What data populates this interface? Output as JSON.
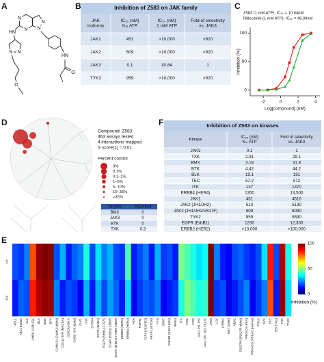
{
  "panel_labels": [
    "A",
    "B",
    "C",
    "D",
    "E",
    "F"
  ],
  "structure": {
    "atoms": [
      "N",
      "N",
      "N",
      "N",
      "HN",
      "N",
      "N",
      "HN",
      "O",
      "O"
    ]
  },
  "table_b": {
    "title": "Inhibition of Z583  on JAK family",
    "columns": [
      [
        "JAK",
        "isoforms"
      ],
      [
        "IC₅₀ (nM)",
        "Kₘ ATP"
      ],
      [
        "IC₅₀ (nM)",
        "1 mM ATP"
      ],
      [
        "Fold of selectivity",
        "vs. JAK3"
      ]
    ],
    "rows": [
      [
        "JAK1",
        451,
        ">10,000",
        ">920"
      ],
      [
        "JAK2",
        609,
        ">10,000",
        ">920"
      ],
      [
        "JAK3",
        0.1,
        10.84,
        1
      ],
      [
        "TYK2",
        959,
        ">10,000",
        ">920"
      ]
    ],
    "highlight_row": 2,
    "highlight_color": "#e8170f"
  },
  "chart_data": {
    "type": "line",
    "x_label": "Log[compound] (nM)",
    "y_label": "Inhibition (%)",
    "x": [
      -2.5,
      -1.5,
      -0.5,
      0.5,
      1,
      1.5,
      2.5,
      3.5
    ],
    "series": [
      {
        "name": "Z583 (1 mM ATP): IC₅₀ = 10.84nM",
        "color": "#e8170f",
        "values": [
          0,
          0.3,
          3,
          23,
          48,
          75,
          97,
          100
        ]
      },
      {
        "name": "Ritlecitinib (1 mM ATP): IC₅₀ = 48.09nM",
        "color": "#22a82a",
        "values": [
          0,
          0,
          1,
          6,
          17,
          40,
          87,
          99
        ]
      }
    ],
    "xlim": [
      -3.5,
      4.5
    ],
    "xticks": [
      -2,
      0,
      2,
      4
    ],
    "ylim": [
      -10,
      110
    ],
    "yticks": [
      0,
      50,
      100
    ]
  },
  "panel_d": {
    "info": [
      "Compound: Z583",
      "463 assays tested",
      "4 interactions mapped",
      "S score(1) = 0.01"
    ],
    "legend_title": "Percent control",
    "legend": [
      "0%",
      "0.1%",
      "0.1–1%",
      "1–5%",
      "5–10%",
      "10–35%",
      ">35%"
    ],
    "targets": {
      "header": [
        "Targets",
        "%Control"
      ],
      "rows": [
        [
          "BMX",
          0
        ],
        [
          "JAK3",
          0
        ],
        [
          "BTK",
          0
        ],
        [
          "TXK",
          0.3
        ]
      ]
    }
  },
  "table_f": {
    "title": "Inhibition of Z583  on kinases",
    "columns": [
      [
        "Kinase"
      ],
      [
        "IC₅₀ (nM)",
        "Kₘ ATP"
      ],
      [
        "Fold of selectivity",
        "vs. JAK3"
      ]
    ],
    "rows": [
      [
        "JAK3",
        0.1,
        1
      ],
      [
        "TXK",
        2.91,
        29.1
      ],
      [
        "BMX",
        3.18,
        31.8
      ],
      [
        "BTK",
        4.42,
        44.2
      ],
      [
        "BLK",
        19.1,
        191
      ],
      [
        "TEC",
        57.2,
        572
      ],
      [
        "ITK",
        137,
        1370
      ],
      [
        "ERBB4 (HER4)",
        1350,
        "13,500"
      ],
      [
        "JAK1",
        451,
        4510
      ],
      [
        "JAK2 (JH1/JH2)",
        513,
        5130
      ],
      [
        "JAK2 (JH1/JH2/V617F)",
        609,
        6090
      ],
      [
        "TYK2",
        959,
        9590
      ],
      [
        "EGFR (ErbB1)",
        1230,
        "12,300"
      ],
      [
        "ERBB2 (HER2)",
        ">10,000",
        ">100,000"
      ]
    ],
    "highlight_row": 0,
    "highlight_color": "#e8170f"
  },
  "heatmap": {
    "rows": [
      "1",
      "2"
    ],
    "columns": [
      "ABL1",
      "ABL1 E255K",
      "ALK",
      "AMPK A1/B1/G1",
      "BLK",
      "BMX",
      "BTK",
      "CAMK2A (CaMKII alpha)",
      "CDC42 BPA (MRCKA)",
      "CDK2/cyclin A",
      "CHUK (IKK alpha)",
      "CLK1",
      "CSK",
      "DYRK4",
      "EGFR (ErbB1)",
      "EGFR (ErbB1) C797S",
      "EGFR (ErbB1) L858R",
      "EGFR (ErbB1) T790M L858R",
      "ERBB2 (HER2)",
      "ERBB4 (HER4)",
      "FER",
      "FGFR1",
      "FLT4 (VEGFR3)",
      "FRAP1 (mTOR)",
      "FYN",
      "GRK7",
      "GSK3B (GSK3 beta)",
      "IRAK4",
      "ITK",
      "JAK1",
      "JAK2",
      "JAK2 JH1 JH2",
      "JAK2 JH1 JH2 V617F",
      "JAK3",
      "LCK",
      "LRRK2",
      "MET (cMet)",
      "NEK1",
      "PDGFRA (PDGFR alpha)",
      "PRKACA (PKA)",
      "PRKACG (PRKAC gamma)",
      "PRKX",
      "SYK",
      "TEC",
      "TEK (Tie2)",
      "TXK",
      "TYK2"
    ],
    "values": [
      [
        20,
        18,
        25,
        80,
        98,
        100,
        99,
        20,
        30,
        15,
        22,
        25,
        40,
        20,
        35,
        25,
        30,
        20,
        18,
        45,
        15,
        20,
        25,
        15,
        30,
        18,
        20,
        15,
        50,
        45,
        40,
        35,
        38,
        100,
        25,
        15,
        12,
        20,
        22,
        18,
        15,
        20,
        35,
        85,
        20,
        95,
        40
      ],
      [
        15,
        22,
        20,
        85,
        95,
        98,
        97,
        25,
        15,
        20,
        18,
        12,
        30,
        15,
        30,
        20,
        28,
        22,
        15,
        35,
        12,
        18,
        22,
        20,
        25,
        12,
        15,
        18,
        40,
        50,
        45,
        40,
        42,
        100,
        18,
        20,
        10,
        15,
        20,
        25,
        12,
        18,
        25,
        80,
        15,
        98,
        35
      ]
    ],
    "clim": [
      0,
      100
    ],
    "colormap": "jet",
    "colorbar_ticks": [
      0,
      50,
      100
    ],
    "colorbar_label": "Inhibition (%)"
  }
}
